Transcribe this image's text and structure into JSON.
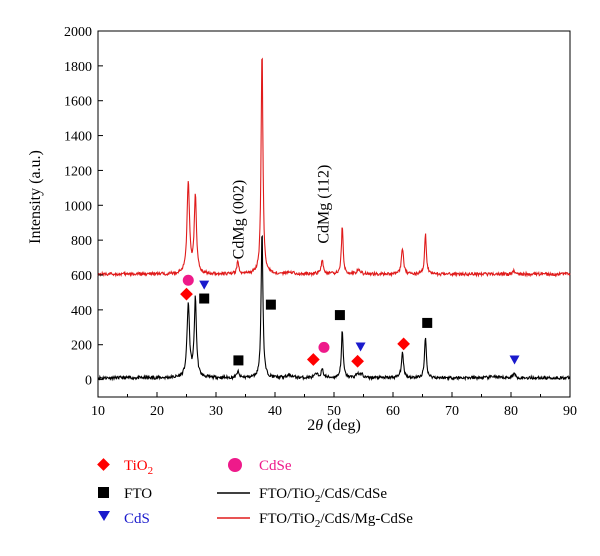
{
  "chart_data": {
    "type": "line",
    "xlabel_main": "2",
    "xlabel_symbol": "θ",
    "xlabel_unit": " (deg)",
    "ylabel": "Intensity (a.u.)",
    "xlim": [
      10,
      90
    ],
    "ylim": [
      -100,
      2000
    ],
    "x_ticks": [
      10,
      20,
      30,
      40,
      50,
      60,
      70,
      80,
      90
    ],
    "y_ticks": [
      0,
      200,
      400,
      600,
      800,
      1000,
      1200,
      1400,
      1600,
      1800,
      2000
    ],
    "grid": false,
    "legend_position": "bottom",
    "annotations": [
      {
        "text": "CdMg (002)",
        "x": 33.8,
        "y": 690,
        "rotation": -90
      },
      {
        "text": "CdMg (112)",
        "x": 48.2,
        "y": 780,
        "rotation": -90
      }
    ],
    "series": [
      {
        "name": "FTO/TiO2/CdS/CdSe",
        "color": "#000000",
        "baseline": 10,
        "peaks": [
          {
            "x": 25.3,
            "h": 420,
            "w": 0.25
          },
          {
            "x": 26.5,
            "h": 450,
            "w": 0.22
          },
          {
            "x": 33.7,
            "h": 35,
            "w": 0.2
          },
          {
            "x": 37.8,
            "h": 850,
            "w": 0.18
          },
          {
            "x": 42.5,
            "h": 15,
            "w": 0.5
          },
          {
            "x": 47.0,
            "h": 20,
            "w": 0.3
          },
          {
            "x": 48.0,
            "h": 45,
            "w": 0.25
          },
          {
            "x": 51.4,
            "h": 270,
            "w": 0.18
          },
          {
            "x": 54.0,
            "h": 25,
            "w": 0.3
          },
          {
            "x": 54.7,
            "h": 20,
            "w": 0.25
          },
          {
            "x": 61.6,
            "h": 140,
            "w": 0.22
          },
          {
            "x": 65.5,
            "h": 240,
            "w": 0.18
          },
          {
            "x": 77.0,
            "h": 10,
            "w": 0.4
          },
          {
            "x": 80.5,
            "h": 25,
            "w": 0.25
          }
        ]
      },
      {
        "name": "FTO/TiO2/CdS/Mg-CdSe",
        "color": "#e01b1b",
        "baseline": 605,
        "peaks": [
          {
            "x": 25.3,
            "h": 520,
            "w": 0.25
          },
          {
            "x": 26.5,
            "h": 450,
            "w": 0.22
          },
          {
            "x": 33.7,
            "h": 70,
            "w": 0.2
          },
          {
            "x": 37.8,
            "h": 1290,
            "w": 0.18
          },
          {
            "x": 42.5,
            "h": 15,
            "w": 0.5
          },
          {
            "x": 48.0,
            "h": 75,
            "w": 0.25
          },
          {
            "x": 51.4,
            "h": 270,
            "w": 0.18
          },
          {
            "x": 54.2,
            "h": 30,
            "w": 0.3
          },
          {
            "x": 61.6,
            "h": 150,
            "w": 0.22
          },
          {
            "x": 65.5,
            "h": 235,
            "w": 0.18
          },
          {
            "x": 80.5,
            "h": 20,
            "w": 0.25
          }
        ]
      }
    ],
    "markers": [
      {
        "phase": "TiO2",
        "shape": "diamond",
        "color": "#ff0000",
        "points": [
          [
            25.0,
            490
          ],
          [
            46.5,
            115
          ],
          [
            54.0,
            105
          ],
          [
            61.8,
            205
          ]
        ]
      },
      {
        "phase": "FTO",
        "shape": "square",
        "color": "#000000",
        "points": [
          [
            28.0,
            465
          ],
          [
            33.8,
            110
          ],
          [
            39.3,
            430
          ],
          [
            51.0,
            370
          ],
          [
            65.8,
            325
          ]
        ]
      },
      {
        "phase": "CdS",
        "shape": "triangle",
        "color": "#1a1acc",
        "points": [
          [
            28.0,
            545
          ],
          [
            54.5,
            190
          ],
          [
            80.6,
            115
          ]
        ]
      },
      {
        "phase": "CdSe",
        "shape": "circle",
        "color": "#ee1a8a",
        "points": [
          [
            25.3,
            570
          ],
          [
            48.3,
            185
          ]
        ]
      }
    ]
  },
  "legend": {
    "tio2_main": "TiO",
    "tio2_sub": "2",
    "cdse": "CdSe",
    "fto": "FTO",
    "cds": "CdS",
    "line1_a": "FTO/TiO",
    "line1_sub": "2",
    "line1_b": "/CdS/CdSe",
    "line2_a": "FTO/TiO",
    "line2_sub": "2",
    "line2_b": "/CdS/Mg-CdSe",
    "colors": {
      "tio2": "#ff0000",
      "cdse": "#ee1a8a",
      "fto": "#000000",
      "cds": "#1a1acc",
      "line1": "#000000",
      "line2": "#e01b1b"
    }
  }
}
